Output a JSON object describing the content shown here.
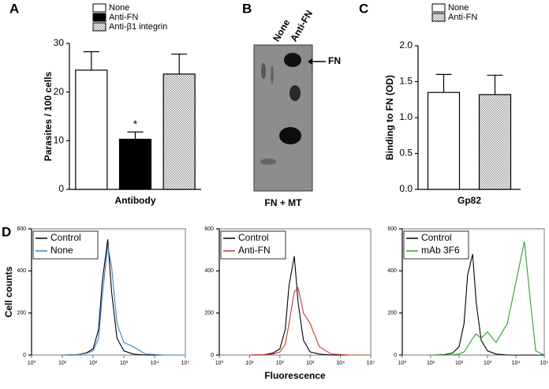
{
  "chart_data": [
    {
      "type": "bar",
      "panel": "A",
      "ylabel": "Parasites / 100 cells",
      "xlabel": "Antibody",
      "annotation": "*",
      "ylim": [
        0,
        30
      ],
      "yticks": [
        0,
        10,
        20,
        30
      ],
      "series": [
        {
          "name": "None",
          "color": "#ffffff",
          "values": [
            24.5
          ],
          "errors": [
            3.8
          ]
        },
        {
          "name": "Anti-FN",
          "color": "#000000",
          "values": [
            10.3
          ],
          "errors": [
            1.5
          ]
        },
        {
          "name": "Anti-β1 integrin",
          "color": "#cfcfcf",
          "hatched": true,
          "values": [
            23.7
          ],
          "errors": [
            4.1
          ]
        }
      ]
    },
    {
      "type": "blot",
      "panel": "B",
      "lanes": [
        "None",
        "Anti-FN"
      ],
      "band_label": "FN",
      "xlabel": "FN + MT"
    },
    {
      "type": "bar",
      "panel": "C",
      "ylabel": "Binding to FN (OD)",
      "xlabel": "Gp82",
      "ylim": [
        0,
        2
      ],
      "yticks": [
        {
          "value": 0,
          "label": "0.0"
        },
        {
          "value": 0.5,
          "label": "0.5"
        },
        {
          "value": 1,
          "label": "1.0"
        },
        {
          "value": 1.5,
          "label": "1.5"
        },
        {
          "value": 2,
          "label": "2.0"
        }
      ],
      "series": [
        {
          "name": "None",
          "color": "#ffffff",
          "values": [
            1.35
          ],
          "errors": [
            0.25
          ]
        },
        {
          "name": "Anti-FN",
          "color": "#cfcfcf",
          "hatched": true,
          "values": [
            1.32
          ],
          "errors": [
            0.27
          ]
        }
      ]
    },
    {
      "type": "line",
      "panel": "D",
      "ylabel": "Cell counts",
      "log_x": true,
      "xlim": [
        1,
        100000
      ],
      "xticks": [
        {
          "value": 1,
          "label": "10⁰"
        },
        {
          "value": 10,
          "label": "10¹"
        },
        {
          "value": 100,
          "label": "10²"
        },
        {
          "value": 1000,
          "label": "10³"
        },
        {
          "value": 10000,
          "label": "10⁴"
        },
        {
          "value": 100000,
          "label": "10⁵"
        }
      ],
      "ylim": [
        0,
        600
      ],
      "yticks": [
        0,
        200,
        400,
        600
      ],
      "x": [
        10,
        30,
        60,
        100,
        150,
        200,
        300,
        400,
        600,
        1000,
        2000,
        5000,
        20000,
        30000,
        50000,
        100000
      ],
      "series": [
        {
          "name": "Control",
          "color": "#000000",
          "values": [
            0,
            2,
            10,
            30,
            120,
            350,
            550,
            300,
            80,
            20,
            5,
            0,
            0,
            0,
            0,
            0
          ]
        },
        {
          "name": "None",
          "color": "#3a7fc0",
          "values": [
            0,
            2,
            8,
            20,
            80,
            280,
            520,
            420,
            150,
            60,
            40,
            5,
            0,
            0,
            0,
            0
          ]
        }
      ]
    },
    {
      "type": "line",
      "xlabel": "Fluorescence",
      "log_x": true,
      "xlim": [
        1,
        100000
      ],
      "xticks": [
        {
          "value": 1,
          "label": "10⁰"
        },
        {
          "value": 10,
          "label": "10¹"
        },
        {
          "value": 100,
          "label": "10²"
        },
        {
          "value": 1000,
          "label": "10³"
        },
        {
          "value": 10000,
          "label": "10⁴"
        },
        {
          "value": 100000,
          "label": "10⁵"
        }
      ],
      "ylim": [
        0,
        600
      ],
      "yticks": [
        0,
        200,
        400,
        600
      ],
      "x": [
        10,
        30,
        60,
        100,
        150,
        200,
        300,
        400,
        600,
        1000,
        2000,
        5000,
        20000,
        30000,
        50000,
        100000
      ],
      "series": [
        {
          "name": "Control",
          "color": "#000000",
          "values": [
            0,
            2,
            10,
            30,
            120,
            330,
            470,
            250,
            70,
            15,
            5,
            0,
            0,
            0,
            0,
            0
          ]
        },
        {
          "name": "Anti-FN",
          "color": "#c0392b",
          "values": [
            0,
            2,
            5,
            15,
            50,
            150,
            300,
            320,
            200,
            150,
            40,
            5,
            0,
            0,
            0,
            0
          ]
        }
      ]
    },
    {
      "type": "line",
      "log_x": true,
      "xlim": [
        1,
        100000
      ],
      "xticks": [
        {
          "value": 1,
          "label": "10⁰"
        },
        {
          "value": 10,
          "label": "10¹"
        },
        {
          "value": 100,
          "label": "10²"
        },
        {
          "value": 1000,
          "label": "10³"
        },
        {
          "value": 10000,
          "label": "10⁴"
        },
        {
          "value": 100000,
          "label": "10⁵"
        }
      ],
      "ylim": [
        0,
        600
      ],
      "yticks": [
        0,
        200,
        400,
        600
      ],
      "x": [
        10,
        30,
        60,
        100,
        150,
        200,
        300,
        400,
        600,
        1000,
        2000,
        5000,
        20000,
        30000,
        50000,
        100000
      ],
      "series": [
        {
          "name": "Control",
          "color": "#000000",
          "values": [
            0,
            2,
            10,
            40,
            150,
            380,
            480,
            250,
            70,
            20,
            5,
            0,
            0,
            0,
            0,
            0
          ]
        },
        {
          "name": "mAb 3F6",
          "color": "#2ca02c",
          "values": [
            0,
            0,
            2,
            5,
            15,
            40,
            80,
            100,
            80,
            110,
            60,
            150,
            540,
            300,
            20,
            0
          ]
        }
      ]
    }
  ]
}
